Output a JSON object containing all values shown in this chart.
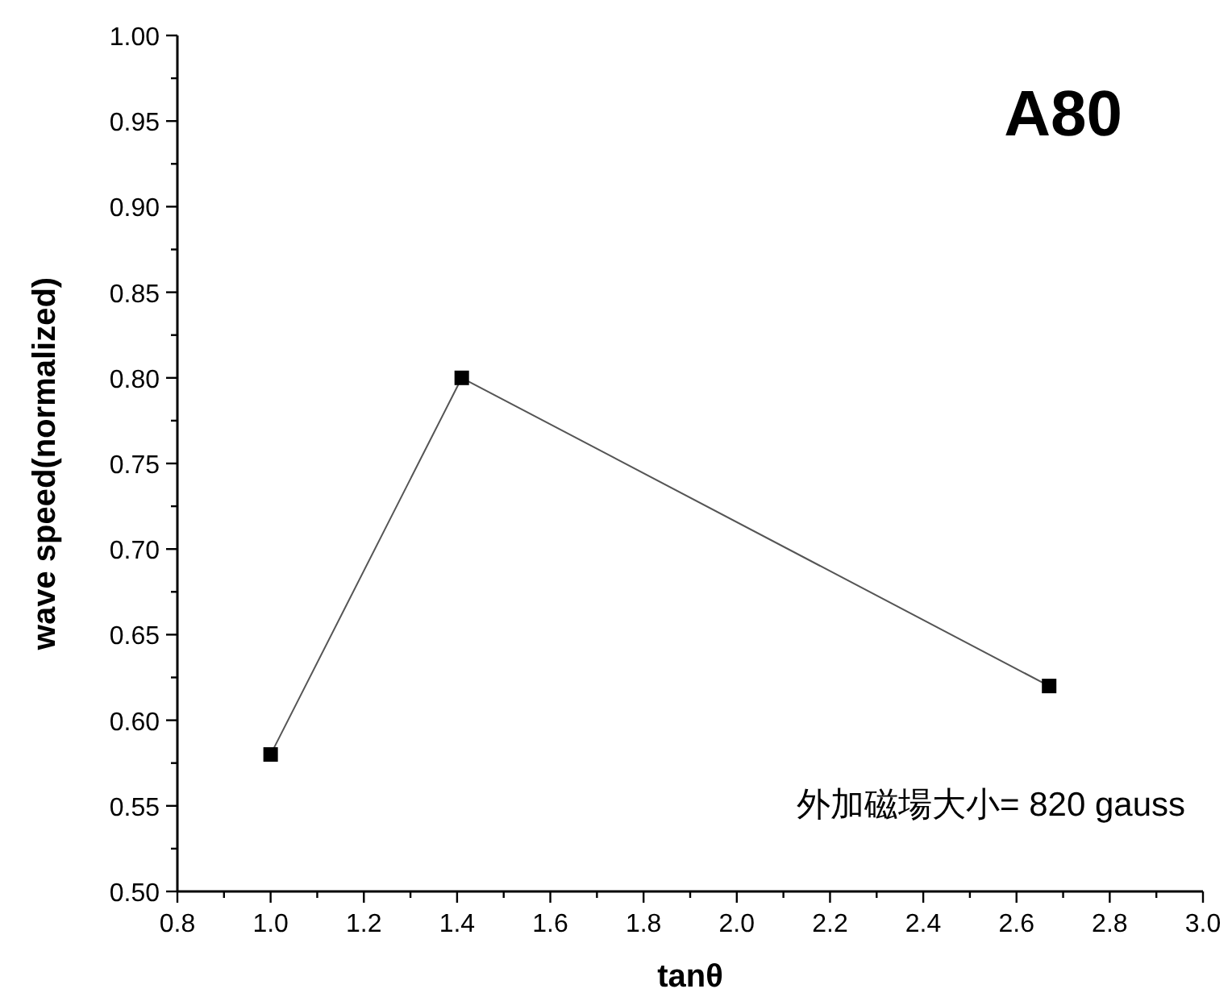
{
  "chart_data": {
    "type": "line",
    "title": "A80",
    "xlabel": "tanθ",
    "ylabel": "wave speed(normalized)",
    "annotations": [
      "外加磁場大小= 820 gauss"
    ],
    "x": [
      1.0,
      1.41,
      2.67
    ],
    "series": [
      {
        "color": "#000000",
        "values": [
          0.58,
          0.8,
          0.62
        ]
      }
    ],
    "marker": "square",
    "line_style": "solid",
    "grid": false,
    "xlim": [
      0.8,
      3.0
    ],
    "xticks": [
      {
        "value": 0.8,
        "label": "0.8"
      },
      {
        "value": 1.0,
        "label": "1.0"
      },
      {
        "value": 1.2,
        "label": "1.2"
      },
      {
        "value": 1.4,
        "label": "1.4"
      },
      {
        "value": 1.6,
        "label": "1.6"
      },
      {
        "value": 1.8,
        "label": "1.8"
      },
      {
        "value": 2.0,
        "label": "2.0"
      },
      {
        "value": 2.2,
        "label": "2.2"
      },
      {
        "value": 2.4,
        "label": "2.4"
      },
      {
        "value": 2.6,
        "label": "2.6"
      },
      {
        "value": 2.8,
        "label": "2.8"
      },
      {
        "value": 3.0,
        "label": "3.0"
      }
    ],
    "ylim": [
      0.5,
      1.0
    ],
    "yticks": [
      {
        "value": 0.5,
        "label": "0.50"
      },
      {
        "value": 0.55,
        "label": "0.55"
      },
      {
        "value": 0.6,
        "label": "0.60"
      },
      {
        "value": 0.65,
        "label": "0.65"
      },
      {
        "value": 0.7,
        "label": "0.70"
      },
      {
        "value": 0.75,
        "label": "0.75"
      },
      {
        "value": 0.8,
        "label": "0.80"
      },
      {
        "value": 0.85,
        "label": "0.85"
      },
      {
        "value": 0.9,
        "label": "0.90"
      },
      {
        "value": 0.95,
        "label": "0.95"
      },
      {
        "value": 1.0,
        "label": "1.00"
      }
    ]
  }
}
